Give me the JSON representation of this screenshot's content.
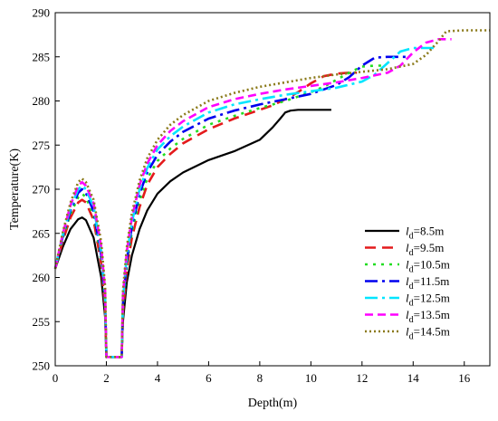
{
  "chart_data": {
    "type": "line",
    "xlabel": "Depth(m)",
    "ylabel": "Temperature(K)",
    "xlim": [
      0,
      17
    ],
    "ylim": [
      250,
      290
    ],
    "xticks": [
      0,
      2,
      4,
      6,
      8,
      10,
      12,
      14,
      16
    ],
    "yticks": [
      250,
      255,
      260,
      265,
      270,
      275,
      280,
      285,
      290
    ],
    "grid": false,
    "legend_position": "lower-right",
    "legend_prefix": "l",
    "legend_subscript": "d",
    "series": [
      {
        "name": "=8.5m",
        "color": "#000000",
        "dash": "solid",
        "x": [
          0,
          0.3,
          0.6,
          0.9,
          1.05,
          1.2,
          1.5,
          1.8,
          1.95,
          2.0,
          2.6,
          2.65,
          2.8,
          3.0,
          3.3,
          3.6,
          4.0,
          4.5,
          5.0,
          6.0,
          7.0,
          8.0,
          8.5,
          8.8,
          9.0,
          9.2,
          9.5,
          10.0,
          10.8
        ],
        "y": [
          261,
          263.5,
          265.5,
          266.6,
          266.8,
          266.5,
          264.5,
          260.0,
          255.5,
          251,
          251,
          255.0,
          259.5,
          262.5,
          265.5,
          267.6,
          269.5,
          270.9,
          271.9,
          273.3,
          274.3,
          275.6,
          277.0,
          278.0,
          278.7,
          278.9,
          279.0,
          279.0,
          279.0
        ]
      },
      {
        "name": "=9.5m",
        "color": "#e41a1c",
        "dash": "12,7",
        "x": [
          0,
          0.3,
          0.6,
          0.9,
          1.05,
          1.2,
          1.5,
          1.8,
          1.95,
          2.0,
          2.6,
          2.65,
          2.8,
          3.0,
          3.3,
          3.6,
          4.0,
          4.5,
          5.0,
          6.0,
          7.0,
          8.0,
          8.5,
          9.0,
          9.5,
          10.0,
          10.5,
          11.0,
          11.5,
          11.8
        ],
        "y": [
          261,
          264.2,
          266.8,
          268.5,
          268.8,
          268.5,
          266.5,
          261.5,
          256.5,
          251,
          251,
          256.0,
          261.0,
          264.5,
          268.0,
          270.5,
          272.5,
          274.0,
          275.2,
          276.8,
          278.0,
          279.0,
          279.5,
          280.2,
          281.0,
          282.0,
          282.8,
          283.1,
          283.2,
          283.2
        ]
      },
      {
        "name": "=10.5m",
        "color": "#22dd22",
        "dash": "3,6",
        "x": [
          0,
          0.3,
          0.6,
          0.9,
          1.05,
          1.2,
          1.5,
          1.8,
          1.95,
          2.0,
          2.6,
          2.65,
          2.8,
          3.0,
          3.3,
          3.6,
          4.0,
          4.5,
          5.0,
          6.0,
          7.0,
          8.0,
          9.0,
          10.0,
          10.5,
          11.0,
          11.5,
          12.0,
          12.5,
          12.8
        ],
        "y": [
          261,
          264.5,
          267.2,
          269.1,
          269.5,
          269.1,
          267.0,
          262.0,
          257.0,
          251,
          251,
          256.5,
          261.5,
          265.2,
          268.8,
          271.2,
          273.2,
          274.6,
          275.7,
          277.3,
          278.3,
          279.2,
          280.0,
          281.0,
          281.6,
          282.4,
          283.2,
          283.9,
          284.0,
          284.0
        ]
      },
      {
        "name": "=11.5m",
        "color": "#0000ee",
        "dash": "14,5,3,5",
        "x": [
          0,
          0.3,
          0.6,
          0.9,
          1.05,
          1.2,
          1.5,
          1.8,
          1.95,
          2.0,
          2.6,
          2.65,
          2.8,
          3.0,
          3.3,
          3.6,
          4.0,
          4.5,
          5.0,
          6.0,
          7.0,
          8.0,
          9.0,
          10.0,
          11.0,
          11.5,
          12.0,
          12.5,
          13.0,
          13.5,
          13.8
        ],
        "y": [
          261,
          264.7,
          267.6,
          269.6,
          270.0,
          269.6,
          267.5,
          262.5,
          257.5,
          251,
          251,
          257.0,
          262.0,
          265.8,
          269.5,
          271.9,
          273.9,
          275.4,
          276.5,
          278.0,
          278.9,
          279.6,
          280.2,
          280.8,
          281.8,
          282.7,
          284.0,
          284.9,
          285.0,
          285.0,
          285.0
        ]
      },
      {
        "name": "=12.5m",
        "color": "#00e5ff",
        "dash": "14,5,3,5",
        "x": [
          0,
          0.3,
          0.6,
          0.9,
          1.05,
          1.2,
          1.5,
          1.8,
          1.95,
          2.0,
          2.6,
          2.65,
          2.8,
          3.0,
          3.3,
          3.6,
          4.0,
          4.5,
          5.0,
          6.0,
          7.0,
          8.0,
          9.0,
          10.0,
          11.0,
          12.0,
          12.5,
          13.0,
          13.5,
          14.0,
          14.5,
          14.8
        ],
        "y": [
          261,
          264.9,
          267.9,
          270.0,
          270.4,
          270.0,
          268.0,
          263.0,
          258.0,
          251,
          251,
          257.5,
          262.5,
          266.3,
          270.0,
          272.4,
          274.5,
          276.0,
          277.1,
          278.7,
          279.6,
          280.2,
          280.7,
          281.1,
          281.5,
          282.2,
          283.0,
          284.3,
          285.6,
          286.0,
          286.0,
          286.0
        ]
      },
      {
        "name": "=13.5m",
        "color": "#ff00ff",
        "dash": "9,5",
        "x": [
          0,
          0.3,
          0.6,
          0.9,
          1.05,
          1.2,
          1.5,
          1.8,
          1.95,
          2.0,
          2.6,
          2.65,
          2.8,
          3.0,
          3.3,
          3.6,
          4.0,
          4.5,
          5.0,
          6.0,
          7.0,
          8.0,
          9.0,
          10.0,
          11.0,
          12.0,
          13.0,
          13.5,
          14.0,
          14.5,
          15.0,
          15.5
        ],
        "y": [
          261,
          265.0,
          268.2,
          270.4,
          270.8,
          270.4,
          268.4,
          263.5,
          258.5,
          251,
          251,
          258.0,
          263.0,
          266.8,
          270.5,
          272.9,
          275.0,
          276.6,
          277.7,
          279.3,
          280.2,
          280.8,
          281.3,
          281.7,
          282.1,
          282.6,
          283.2,
          284.0,
          285.5,
          286.6,
          287.0,
          287.0
        ]
      },
      {
        "name": "=14.5m",
        "color": "#8b7a1a",
        "dash": "2,3",
        "x": [
          0,
          0.3,
          0.6,
          0.9,
          1.05,
          1.2,
          1.5,
          1.8,
          1.95,
          2.0,
          2.6,
          2.65,
          2.8,
          3.0,
          3.3,
          3.6,
          4.0,
          4.5,
          5.0,
          6.0,
          7.0,
          8.0,
          9.0,
          10.0,
          11.0,
          12.0,
          13.0,
          14.0,
          14.5,
          15.0,
          15.3,
          16.0,
          17.0
        ],
        "y": [
          261,
          265.2,
          268.5,
          270.8,
          271.2,
          270.8,
          268.8,
          264.0,
          259.0,
          251,
          251,
          258.5,
          263.5,
          267.3,
          271.0,
          273.5,
          275.6,
          277.3,
          278.4,
          280.0,
          280.9,
          281.6,
          282.1,
          282.6,
          283.0,
          283.3,
          283.6,
          284.2,
          285.2,
          286.8,
          287.9,
          288.0,
          288.0
        ]
      }
    ]
  }
}
